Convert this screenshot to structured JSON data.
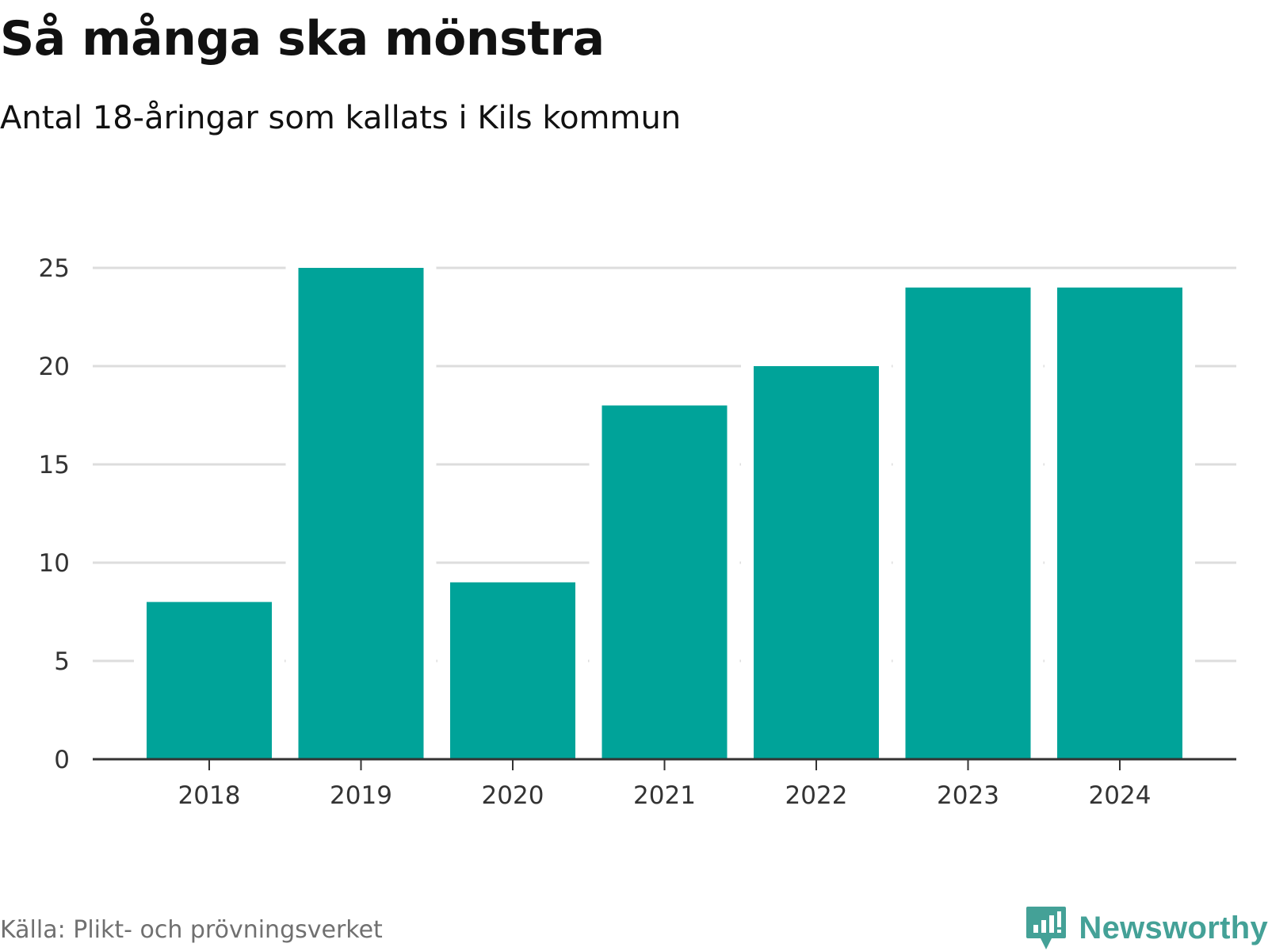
{
  "chart_data": {
    "type": "bar",
    "title": "Så många ska mönstra",
    "subtitle": "Antal 18-åringar som kallats i Kils kommun",
    "categories": [
      "2018",
      "2019",
      "2020",
      "2021",
      "2022",
      "2023",
      "2024"
    ],
    "values": [
      8,
      25,
      9,
      18,
      20,
      24,
      24
    ],
    "xlabel": "",
    "ylabel": "",
    "ylim": [
      0,
      25
    ],
    "yticks": [
      "0",
      "5",
      "10",
      "15",
      "20",
      "25"
    ],
    "grid": true,
    "legend": "none"
  },
  "source": "Källa: Plikt- och prövningsverket",
  "brand": {
    "name": "Newsworthy",
    "icon": "newsworthy-logo-icon"
  },
  "colors": {
    "bar": "#00a399",
    "grid": "#dddddd",
    "axis": "#333333",
    "brand": "#44a197"
  }
}
